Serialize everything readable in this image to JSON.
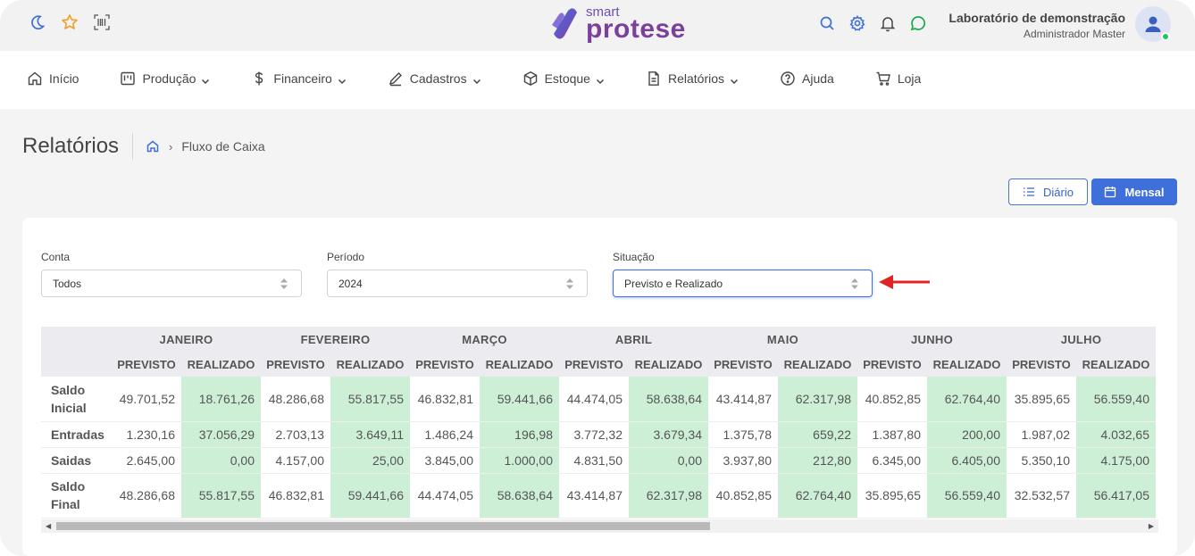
{
  "brand": {
    "small": "smart",
    "big": "protese"
  },
  "user": {
    "name": "Laboratório de demonstração",
    "role": "Administrador Master"
  },
  "nav": [
    {
      "label": "Início",
      "icon": "home-icon",
      "dropdown": false
    },
    {
      "label": "Produção",
      "icon": "kanban-icon",
      "dropdown": true
    },
    {
      "label": "Financeiro",
      "icon": "dollar-icon",
      "dropdown": true
    },
    {
      "label": "Cadastros",
      "icon": "pencil-icon",
      "dropdown": true
    },
    {
      "label": "Estoque",
      "icon": "box-icon",
      "dropdown": true
    },
    {
      "label": "Relatórios",
      "icon": "document-icon",
      "dropdown": true
    },
    {
      "label": "Ajuda",
      "icon": "help-icon",
      "dropdown": false
    },
    {
      "label": "Loja",
      "icon": "cart-icon",
      "dropdown": false
    }
  ],
  "page": {
    "title": "Relatórios",
    "breadcrumb": "Fluxo de Caixa"
  },
  "buttons": {
    "diario": "Diário",
    "mensal": "Mensal"
  },
  "filters": {
    "conta": {
      "label": "Conta",
      "value": "Todos"
    },
    "periodo": {
      "label": "Período",
      "value": "2024"
    },
    "situacao": {
      "label": "Situação",
      "value": "Previsto e Realizado"
    }
  },
  "table": {
    "months": [
      "JANEIRO",
      "FEVEREIRO",
      "MARÇO",
      "ABRIL",
      "MAIO",
      "JUNHO",
      "JULHO"
    ],
    "sub_previsto": "PREVISTO",
    "sub_realizado": "REALIZADO",
    "rows": [
      {
        "label": "Saldo Inicial",
        "values": [
          "49.701,52",
          "18.761,26",
          "48.286,68",
          "55.817,55",
          "46.832,81",
          "59.441,66",
          "44.474,05",
          "58.638,64",
          "43.414,87",
          "62.317,98",
          "40.852,85",
          "62.764,40",
          "35.895,65",
          "56.559,40"
        ]
      },
      {
        "label": "Entradas",
        "values": [
          "1.230,16",
          "37.056,29",
          "2.703,13",
          "3.649,11",
          "1.486,24",
          "196,98",
          "3.772,32",
          "3.679,34",
          "1.375,78",
          "659,22",
          "1.387,80",
          "200,00",
          "1.987,02",
          "4.032,65"
        ]
      },
      {
        "label": "Saidas",
        "values": [
          "2.645,00",
          "0,00",
          "4.157,00",
          "25,00",
          "3.845,00",
          "1.000,00",
          "4.831,50",
          "0,00",
          "3.937,80",
          "212,80",
          "6.345,00",
          "6.405,00",
          "5.350,10",
          "4.175,00"
        ]
      },
      {
        "label": "Saldo Final",
        "values": [
          "48.286,68",
          "55.817,55",
          "46.832,81",
          "59.441,66",
          "44.474,05",
          "58.638,64",
          "43.414,87",
          "62.317,98",
          "40.852,85",
          "62.764,40",
          "35.895,65",
          "56.559,40",
          "32.532,57",
          "56.417,05"
        ]
      }
    ]
  },
  "colors": {
    "accent": "#3f6fd8",
    "realizado_bg": "#ccefd5",
    "arrow": "#e02424"
  }
}
